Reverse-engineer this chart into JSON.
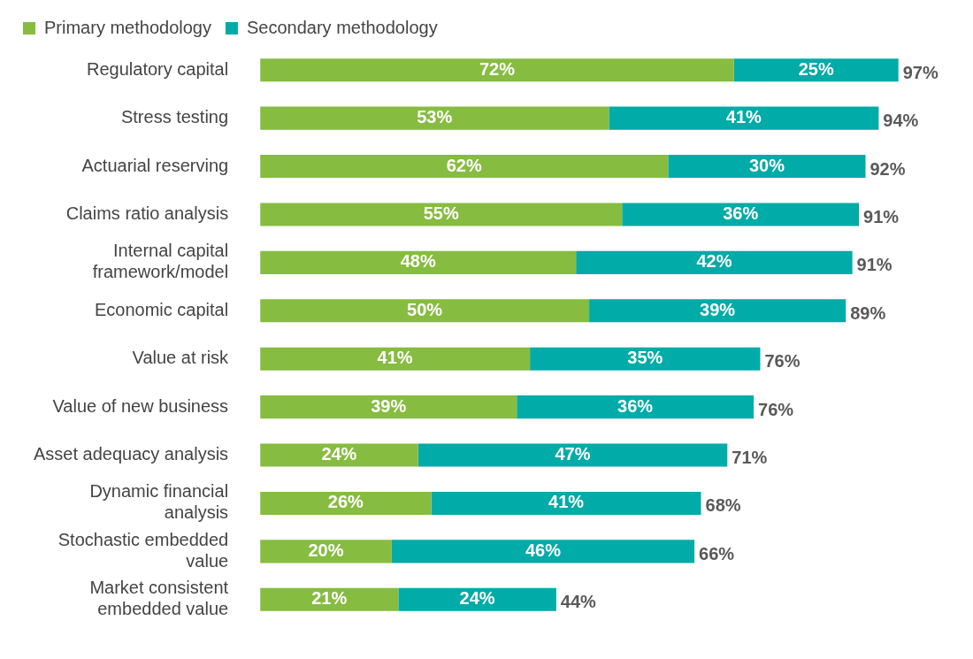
{
  "chart_data": {
    "type": "bar",
    "orientation": "horizontal",
    "stacked": true,
    "legend": "top left",
    "categories": [
      "Regulatory capital",
      "Stress testing",
      "Actuarial reserving",
      "Claims ratio analysis",
      "Internal capital framework/model",
      "Economic capital",
      "Value at risk",
      "Value of new business",
      "Asset adequacy analysis",
      "Dynamic financial analysis",
      "Stochastic embedded value",
      "Market consistent embedded value"
    ],
    "series": [
      {
        "name": "Primary methodology",
        "color": "#86bc40",
        "values": [
          72,
          53,
          62,
          55,
          48,
          50,
          41,
          39,
          24,
          26,
          20,
          21
        ],
        "value_labels": [
          "72%",
          "53%",
          "62%",
          "55%",
          "48%",
          "50%",
          "41%",
          "39%",
          "24%",
          "26%",
          "20%",
          "21%"
        ]
      },
      {
        "name": "Secondary methodology",
        "color": "#00aba8",
        "values": [
          25,
          41,
          30,
          36,
          42,
          39,
          35,
          36,
          47,
          41,
          46,
          24
        ],
        "value_labels": [
          "25%",
          "41%",
          "30%",
          "36%",
          "42%",
          "39%",
          "35%",
          "36%",
          "47%",
          "41%",
          "46%",
          "24%"
        ]
      }
    ],
    "totals": [
      "97%",
      "94%",
      "92%",
      "91%",
      "91%",
      "89%",
      "76%",
      "76%",
      "71%",
      "68%",
      "66%",
      "44%"
    ]
  }
}
